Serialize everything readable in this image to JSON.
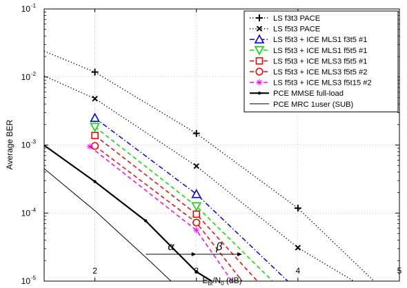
{
  "chart_data": {
    "type": "line",
    "title": "",
    "xlabel": "E_bt/N_0 (dB)",
    "ylabel": "Average BER",
    "xlim": [
      1.5,
      5
    ],
    "ylim": [
      1e-05,
      0.1
    ],
    "y_scale": "log",
    "grid": true,
    "legend_position": "top-right",
    "x_ticks": [
      "2",
      "3",
      "4",
      "5"
    ],
    "y_ticks": [
      {
        "base": "10",
        "exp": "-1",
        "value": 0.1
      },
      {
        "base": "10",
        "exp": "-2",
        "value": 0.01
      },
      {
        "base": "10",
        "exp": "-3",
        "value": 0.001
      },
      {
        "base": "10",
        "exp": "-4",
        "value": 0.0001
      },
      {
        "base": "10",
        "exp": "-5",
        "value": 1e-05
      }
    ],
    "series": [
      {
        "name": "LS f3t3 PACE",
        "color": "#000000",
        "dash": "dotted",
        "marker": "plus",
        "x": [
          1.5,
          2,
          3,
          4,
          4.75
        ],
        "y": [
          0.024,
          0.0118,
          0.00148,
          0.000118,
          1e-05
        ],
        "marker_x": [
          2,
          3,
          4
        ]
      },
      {
        "name": "LS f5t3 PACE",
        "color": "#000000",
        "dash": "dotted",
        "marker": "x",
        "x": [
          1.5,
          2,
          3,
          4,
          4.55
        ],
        "y": [
          0.0104,
          0.0048,
          0.00049,
          3.1e-05,
          1e-05
        ],
        "marker_x": [
          2,
          3,
          4
        ]
      },
      {
        "name": "LS f5t3 + ICE MLS1 f3t5 #1",
        "color": "#0000ff",
        "dash": "dashdot",
        "marker": "triangle-up",
        "x": [
          2,
          3,
          3.9
        ],
        "y": [
          0.0025,
          0.00019,
          1e-05
        ],
        "marker_x": [
          2,
          3
        ]
      },
      {
        "name": "LS f5t3 + ICE MLS1 f5t5 #1",
        "color": "#00e000",
        "dash": "dashed",
        "marker": "triangle-down",
        "x": [
          2,
          3,
          3.75
        ],
        "y": [
          0.00185,
          0.000126,
          1e-05
        ],
        "marker_x": [
          2,
          3
        ]
      },
      {
        "name": "LS f5t3 + ICE MLS3 f5t5 #1",
        "color": "#ff0000",
        "dash": "dashed",
        "marker": "square",
        "x": [
          2,
          3,
          3.6
        ],
        "y": [
          0.00138,
          9.65e-05,
          1e-05
        ],
        "marker_x": [
          2,
          3
        ]
      },
      {
        "name": "LS f5t3 + ICE MLS3 f5t5 #2",
        "color": "#ff0000",
        "dash": "dashed",
        "marker": "circle",
        "x": [
          2,
          3,
          3.45
        ],
        "y": [
          0.00097,
          7.25e-05,
          1e-05
        ],
        "marker_x": [
          2,
          3
        ]
      },
      {
        "name": "LS f5t3 + ICE MLS3 f5t15 #2",
        "color": "#ff00ff",
        "dash": "dashed",
        "marker": "asterisk",
        "x": [
          1.95,
          3,
          3.35
        ],
        "y": [
          0.00095,
          5.6e-05,
          1e-05
        ],
        "marker_x": [
          1.95,
          3
        ]
      },
      {
        "name": "PCE MMSE full-load",
        "color": "#000000",
        "dash": "solid",
        "marker": "dot",
        "width": 2.2,
        "x": [
          1.5,
          2,
          2.5,
          3,
          3.15
        ],
        "y": [
          0.00099,
          0.00029,
          7.7e-05,
          1.37e-05,
          1e-05
        ],
        "marker_x": [
          2,
          2.5,
          3
        ]
      },
      {
        "name": "PCE MRC 1user (SUB)",
        "color": "#000000",
        "dash": "solid",
        "marker": "none",
        "width": 1,
        "x": [
          1.5,
          2,
          2.5,
          2.75
        ],
        "y": [
          0.00045,
          0.000108,
          2.25e-05,
          1e-05
        ],
        "marker_x": []
      }
    ],
    "annotations": [
      {
        "label": "α",
        "from": [
          2.5,
          1.37e-05
        ],
        "to": [
          3.0,
          1.37e-05
        ]
      },
      {
        "label": "β",
        "from": [
          3.0,
          1.37e-05
        ],
        "to": [
          3.45,
          1.37e-05
        ]
      }
    ]
  }
}
